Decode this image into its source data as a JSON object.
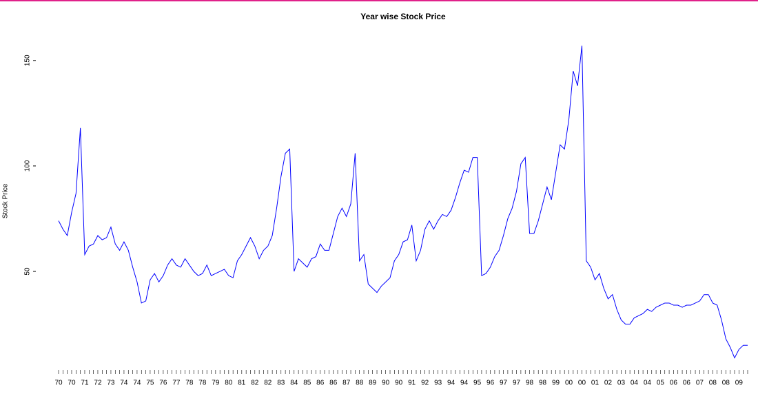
{
  "chart_data": {
    "type": "line",
    "title": "Year wise Stock Price",
    "y_label": "Stock Price",
    "categories": [
      "70",
      null,
      null,
      "70",
      null,
      null,
      "71",
      null,
      null,
      "72",
      null,
      null,
      "73",
      null,
      null,
      "74",
      null,
      null,
      "74",
      null,
      null,
      "75",
      null,
      null,
      "76",
      null,
      null,
      "77",
      null,
      null,
      "78",
      null,
      null,
      "78",
      null,
      null,
      "79",
      null,
      null,
      "80",
      null,
      null,
      "81",
      null,
      null,
      "82",
      null,
      null,
      "82",
      null,
      null,
      "83",
      null,
      null,
      "84",
      null,
      null,
      "85",
      null,
      null,
      "86",
      null,
      null,
      "86",
      null,
      null,
      "87",
      null,
      null,
      "88",
      null,
      null,
      "89",
      null,
      null,
      "90",
      null,
      null,
      "90",
      null,
      null,
      "91",
      null,
      null,
      "92",
      null,
      null,
      "93",
      null,
      null,
      "94",
      null,
      null,
      "94",
      null,
      null,
      "95",
      null,
      null,
      "96",
      null,
      null,
      "97",
      null,
      null,
      "97",
      null,
      null,
      "98",
      null,
      null,
      "98",
      null,
      null,
      "99",
      null,
      null,
      "00",
      null,
      null,
      "00",
      null,
      null,
      "01",
      null,
      null,
      "02",
      null,
      null,
      "03",
      null,
      null,
      "04",
      null,
      null,
      "04",
      null,
      null,
      "05",
      null,
      null,
      "06",
      null,
      null,
      "06",
      null,
      null,
      "07",
      null,
      null,
      "08",
      null,
      null,
      "08",
      null,
      null,
      "09",
      null,
      null
    ],
    "series": [
      {
        "name": "Stock Price",
        "color": "#0000ff",
        "values": [
          74,
          70,
          67,
          78,
          87,
          118,
          58,
          62,
          63,
          67,
          65,
          66,
          71,
          63,
          60,
          64,
          60,
          52,
          45,
          35,
          36,
          46,
          49,
          45,
          48,
          53,
          56,
          53,
          52,
          56,
          53,
          50,
          48,
          49,
          53,
          48,
          49,
          50,
          51,
          48,
          47,
          55,
          58,
          62,
          66,
          62,
          56,
          60,
          62,
          67,
          80,
          95,
          106,
          108,
          50,
          56,
          54,
          52,
          56,
          57,
          63,
          60,
          60,
          68,
          76,
          80,
          76,
          82,
          106,
          55,
          58,
          44,
          42,
          40,
          43,
          45,
          47,
          55,
          58,
          64,
          65,
          72,
          55,
          60,
          70,
          74,
          70,
          74,
          77,
          76,
          79,
          85,
          92,
          98,
          97,
          104,
          104,
          48,
          49,
          52,
          57,
          60,
          67,
          75,
          80,
          88,
          101,
          104,
          68,
          68,
          74,
          82,
          90,
          84,
          97,
          110,
          108,
          122,
          145,
          138,
          157,
          55,
          52,
          46,
          49,
          42,
          37,
          39,
          32,
          27,
          25,
          25,
          28,
          29,
          30,
          32,
          31,
          33,
          34,
          35,
          35,
          34,
          34,
          33,
          34,
          34,
          35,
          36,
          39,
          39,
          35,
          34,
          27,
          18,
          14,
          9,
          13,
          15,
          15
        ]
      }
    ],
    "ylim": [
      2,
      163
    ],
    "yticks": [
      50,
      100,
      150
    ]
  }
}
